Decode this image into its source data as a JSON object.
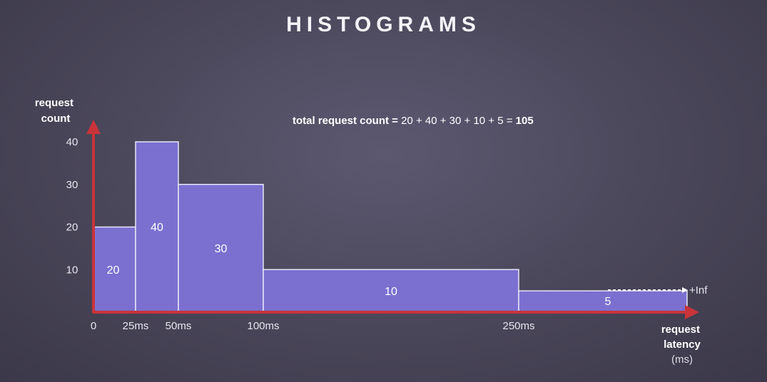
{
  "title": "HISTOGRAMS",
  "chart_data": {
    "type": "bar",
    "title": "HISTOGRAMS",
    "ylabel_lines": [
      "request",
      "count"
    ],
    "xlabel_lines": [
      "request",
      "latency"
    ],
    "xunit": "(ms)",
    "annotation": {
      "prefix": "total request count = ",
      "expression": "20 + 40 + 30 + 10 + 5 = ",
      "result": "105"
    },
    "bins": [
      {
        "from": 0,
        "to": 25,
        "value": 20,
        "label": "20"
      },
      {
        "from": 25,
        "to": 50,
        "value": 40,
        "label": "40"
      },
      {
        "from": 50,
        "to": 100,
        "value": 30,
        "label": "30"
      },
      {
        "from": 100,
        "to": 250,
        "value": 10,
        "label": "10"
      },
      {
        "from": 250,
        "to": "+Inf",
        "value": 5,
        "label": "5"
      }
    ],
    "x_ticks": [
      "0",
      "25ms",
      "50ms",
      "100ms",
      "250ms"
    ],
    "x_tick_values": [
      0,
      25,
      50,
      100,
      250
    ],
    "overflow_label": "+Inf",
    "y_ticks": [
      "10",
      "20",
      "30",
      "40"
    ],
    "y_tick_values": [
      10,
      20,
      30,
      40
    ],
    "ylim": [
      0,
      40
    ],
    "grid": false,
    "colors": {
      "bar_fill": "#7b70d0",
      "bar_stroke": "#e8e6f6",
      "axis": "#c8343a",
      "background": "#4a4659"
    }
  }
}
